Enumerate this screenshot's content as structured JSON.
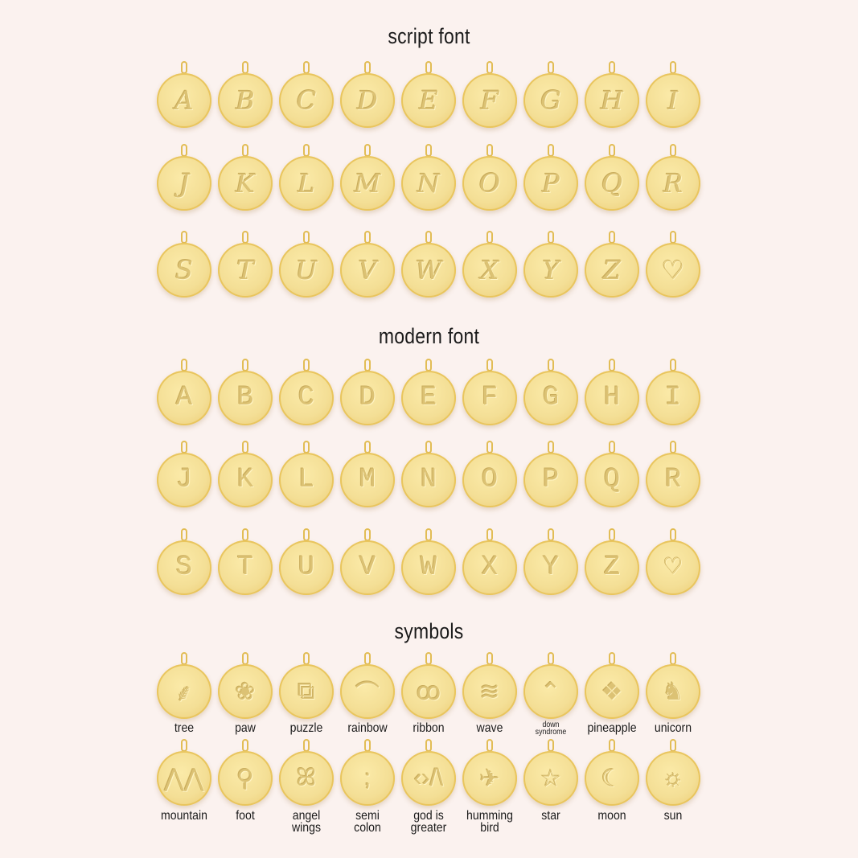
{
  "sections": {
    "script": {
      "title": "script font",
      "letters": [
        "A",
        "B",
        "C",
        "D",
        "E",
        "F",
        "G",
        "H",
        "I",
        "J",
        "K",
        "L",
        "M",
        "N",
        "O",
        "P",
        "Q",
        "R",
        "S",
        "T",
        "U",
        "V",
        "W",
        "X",
        "Y",
        "Z",
        "♡"
      ]
    },
    "modern": {
      "title": "modern font",
      "letters": [
        "A",
        "B",
        "C",
        "D",
        "E",
        "F",
        "G",
        "H",
        "I",
        "J",
        "K",
        "L",
        "M",
        "N",
        "O",
        "P",
        "Q",
        "R",
        "S",
        "T",
        "U",
        "V",
        "W",
        "X",
        "Y",
        "Z",
        "♡"
      ]
    },
    "symbols": {
      "title": "symbols",
      "items": [
        {
          "label": "tree",
          "icon": "tree-icon",
          "glyph": "⸙"
        },
        {
          "label": "paw",
          "icon": "paw-icon",
          "glyph": "❀"
        },
        {
          "label": "puzzle",
          "icon": "puzzle-icon",
          "glyph": "⧉"
        },
        {
          "label": "rainbow",
          "icon": "rainbow-icon",
          "glyph": "⌒"
        },
        {
          "label": "ribbon",
          "icon": "ribbon-icon",
          "glyph": "ꝏ"
        },
        {
          "label": "wave",
          "icon": "wave-icon",
          "glyph": "≋"
        },
        {
          "label": "down syndrome",
          "icon": "chevrons-up-icon",
          "glyph": "⌃"
        },
        {
          "label": "pineapple",
          "icon": "pineapple-icon",
          "glyph": "❖"
        },
        {
          "label": "unicorn",
          "icon": "unicorn-icon",
          "glyph": "♞"
        },
        {
          "label": "mountain",
          "icon": "mountain-icon",
          "glyph": "⋀⋀"
        },
        {
          "label": "foot",
          "icon": "foot-icon",
          "glyph": "⚲"
        },
        {
          "label": "angel wings",
          "icon": "angel-wings-icon",
          "glyph": "ꕤ"
        },
        {
          "label": "semi colon",
          "icon": "semicolon-icon",
          "glyph": ";"
        },
        {
          "label": "god is greater",
          "icon": "god-is-greater-icon",
          "glyph": "‹›/\\"
        },
        {
          "label": "humming bird",
          "icon": "hummingbird-icon",
          "glyph": "✈"
        },
        {
          "label": "star",
          "icon": "star-icon",
          "glyph": "☆"
        },
        {
          "label": "moon",
          "icon": "moon-icon",
          "glyph": "☾"
        },
        {
          "label": "sun",
          "icon": "sun-icon",
          "glyph": "☼"
        }
      ]
    }
  },
  "colors": {
    "background": "#fbf2ef",
    "gold": "#f4df96",
    "gold_edge": "#e5c25a"
  }
}
